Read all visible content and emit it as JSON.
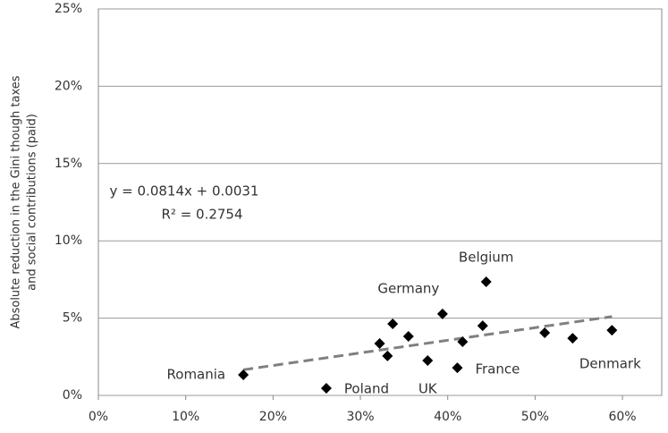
{
  "chart_data": {
    "type": "scatter",
    "y_label_lines": [
      "Absolute reduction in the Gini though taxes",
      "and social contributions (paid)"
    ],
    "x": [
      16.6,
      26.1,
      32.2,
      33.1,
      33.7,
      35.5,
      37.7,
      39.4,
      41.1,
      41.7,
      44.0,
      44.4,
      51.1,
      54.3,
      58.8
    ],
    "values": [
      1.33,
      0.46,
      3.36,
      2.55,
      4.63,
      3.82,
      2.26,
      5.27,
      1.79,
      3.47,
      4.51,
      7.35,
      4.05,
      3.7,
      4.22
    ],
    "labels": [
      "Romania",
      "Poland",
      null,
      null,
      null,
      null,
      "UK",
      "Germany",
      "France",
      null,
      null,
      "Belgium",
      null,
      null,
      "Denmark"
    ],
    "color": "#000000",
    "trendline": {
      "x": [
        16.6,
        58.8
      ],
      "values": [
        1.66,
        5.1
      ],
      "color": "#808080",
      "equation": "y = 0.0814x + 0.0031",
      "r2": "R² = 0.2754"
    },
    "xlim": [
      0,
      64.5
    ],
    "ylim": [
      0,
      25
    ],
    "xticks": [
      {
        "value": 0,
        "label": "0%"
      },
      {
        "value": 10,
        "label": "10%"
      },
      {
        "value": 20,
        "label": "20%"
      },
      {
        "value": 30,
        "label": "30%"
      },
      {
        "value": 40,
        "label": "40%"
      },
      {
        "value": 50,
        "label": "50%"
      },
      {
        "value": 60,
        "label": "60%"
      }
    ],
    "yticks": [
      {
        "value": 0,
        "label": "0%"
      },
      {
        "value": 5,
        "label": "5%"
      },
      {
        "value": 10,
        "label": "10%"
      },
      {
        "value": 15,
        "label": "15%"
      },
      {
        "value": 20,
        "label": "20%"
      },
      {
        "value": 25,
        "label": "25%"
      }
    ],
    "grid": true
  }
}
